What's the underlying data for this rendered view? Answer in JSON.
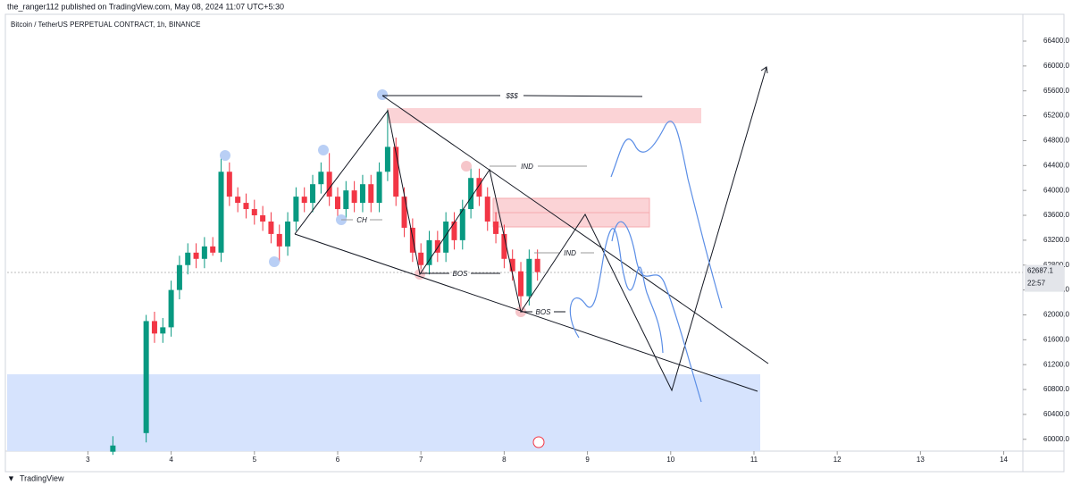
{
  "header": {
    "publisher": "the_ranger112 published on TradingView.com, May 08, 2024 11:07 UTC+5:30"
  },
  "footer": {
    "brand": "TradingView"
  },
  "chart_data": {
    "type": "candlestick",
    "title": "Bitcoin / TetherUS PERPETUAL CONTRACT, 1h, BINANCE",
    "up_color": "#089981",
    "down_color": "#f23645",
    "x": [
      3.3,
      3.7,
      3.8,
      3.9,
      4.0,
      4.1,
      4.2,
      4.3,
      4.4,
      4.5,
      4.6,
      4.7,
      4.8,
      4.9,
      5.0,
      5.1,
      5.2,
      5.3,
      5.4,
      5.5,
      5.6,
      5.7,
      5.8,
      5.9,
      6.0,
      6.1,
      6.2,
      6.3,
      6.4,
      6.5,
      6.6,
      6.7,
      6.8,
      6.9,
      7.0,
      7.1,
      7.2,
      7.3,
      7.4,
      7.5,
      7.6,
      7.7,
      7.8,
      7.9,
      8.0,
      8.1,
      8.2,
      8.3,
      8.4
    ],
    "open": [
      59800,
      60100,
      61900,
      61700,
      61800,
      62400,
      62800,
      63000,
      62900,
      63100,
      63000,
      64300,
      63900,
      63800,
      63700,
      63600,
      63500,
      63300,
      63100,
      63500,
      63900,
      63800,
      64100,
      64300,
      63900,
      63700,
      64000,
      63800,
      64100,
      63800,
      64300,
      64700,
      63900,
      63400,
      63000,
      62800,
      63200,
      63000,
      63500,
      63200,
      63700,
      64200,
      63900,
      63500,
      63300,
      62900,
      62700,
      62300,
      62900
    ],
    "high": [
      60050,
      62000,
      62050,
      61950,
      62550,
      62950,
      63150,
      63150,
      63250,
      63250,
      64550,
      64450,
      64050,
      63950,
      63850,
      63750,
      63650,
      63450,
      63650,
      64050,
      64050,
      64250,
      64450,
      64600,
      64050,
      64150,
      64150,
      64250,
      64250,
      64450,
      65300,
      64850,
      64050,
      63550,
      63150,
      63350,
      63350,
      63650,
      63650,
      63850,
      64400,
      64350,
      64050,
      63650,
      63450,
      63050,
      62850,
      63050,
      63050
    ],
    "low": [
      59750,
      59950,
      61550,
      61550,
      61650,
      62250,
      62650,
      62750,
      62750,
      62950,
      62850,
      63750,
      63650,
      63550,
      63450,
      63350,
      63150,
      62850,
      62950,
      63350,
      63650,
      63650,
      63950,
      63750,
      63550,
      63550,
      63650,
      63650,
      63650,
      63650,
      64150,
      63750,
      63250,
      62850,
      62650,
      62650,
      62850,
      62850,
      63050,
      63050,
      63550,
      63750,
      63350,
      63150,
      62750,
      62550,
      62050,
      62150,
      62550
    ],
    "close": [
      59900,
      61900,
      61700,
      61800,
      62400,
      62800,
      63000,
      62900,
      63100,
      63000,
      64300,
      63900,
      63800,
      63700,
      63600,
      63500,
      63300,
      63100,
      63500,
      63900,
      63800,
      64100,
      64300,
      63900,
      63700,
      64000,
      63800,
      64100,
      63800,
      64300,
      64700,
      63900,
      63400,
      63000,
      62800,
      63200,
      63000,
      63500,
      63200,
      63700,
      64200,
      63900,
      63500,
      63300,
      62900,
      62700,
      62300,
      62900,
      62687.1
    ],
    "last_price": 62687.1,
    "countdown": "22:57",
    "xlim": [
      2.03,
      14.23
    ],
    "ylim": [
      59810,
      66845
    ],
    "xticks": [
      3,
      4,
      5,
      6,
      7,
      8,
      9,
      10,
      11,
      12,
      13,
      14
    ],
    "yticks": [
      {
        "value": 60000,
        "label": "60000.0"
      },
      {
        "value": 60400,
        "label": "60400.0"
      },
      {
        "value": 60800,
        "label": "60800.0"
      },
      {
        "value": 61200,
        "label": "61200.0"
      },
      {
        "value": 61600,
        "label": "61600.0"
      },
      {
        "value": 62000,
        "label": "62000.0"
      },
      {
        "value": 62400,
        "label": "62400.0"
      },
      {
        "value": 62800,
        "label": "62800.0"
      },
      {
        "value": 63200,
        "label": "63200.0"
      },
      {
        "value": 63600,
        "label": "63600.0"
      },
      {
        "value": 64000,
        "label": "64000.0"
      },
      {
        "value": 64400,
        "label": "64400.0"
      },
      {
        "value": 64800,
        "label": "64800.0"
      },
      {
        "value": 65200,
        "label": "65200.0"
      },
      {
        "value": 65600,
        "label": "65600.0"
      },
      {
        "value": 66000,
        "label": "66000.0"
      },
      {
        "value": 66400,
        "label": "66400.0"
      }
    ],
    "annotations": [
      "$$$",
      "IND",
      "CH",
      "BOS",
      "BOS",
      "IND"
    ]
  }
}
